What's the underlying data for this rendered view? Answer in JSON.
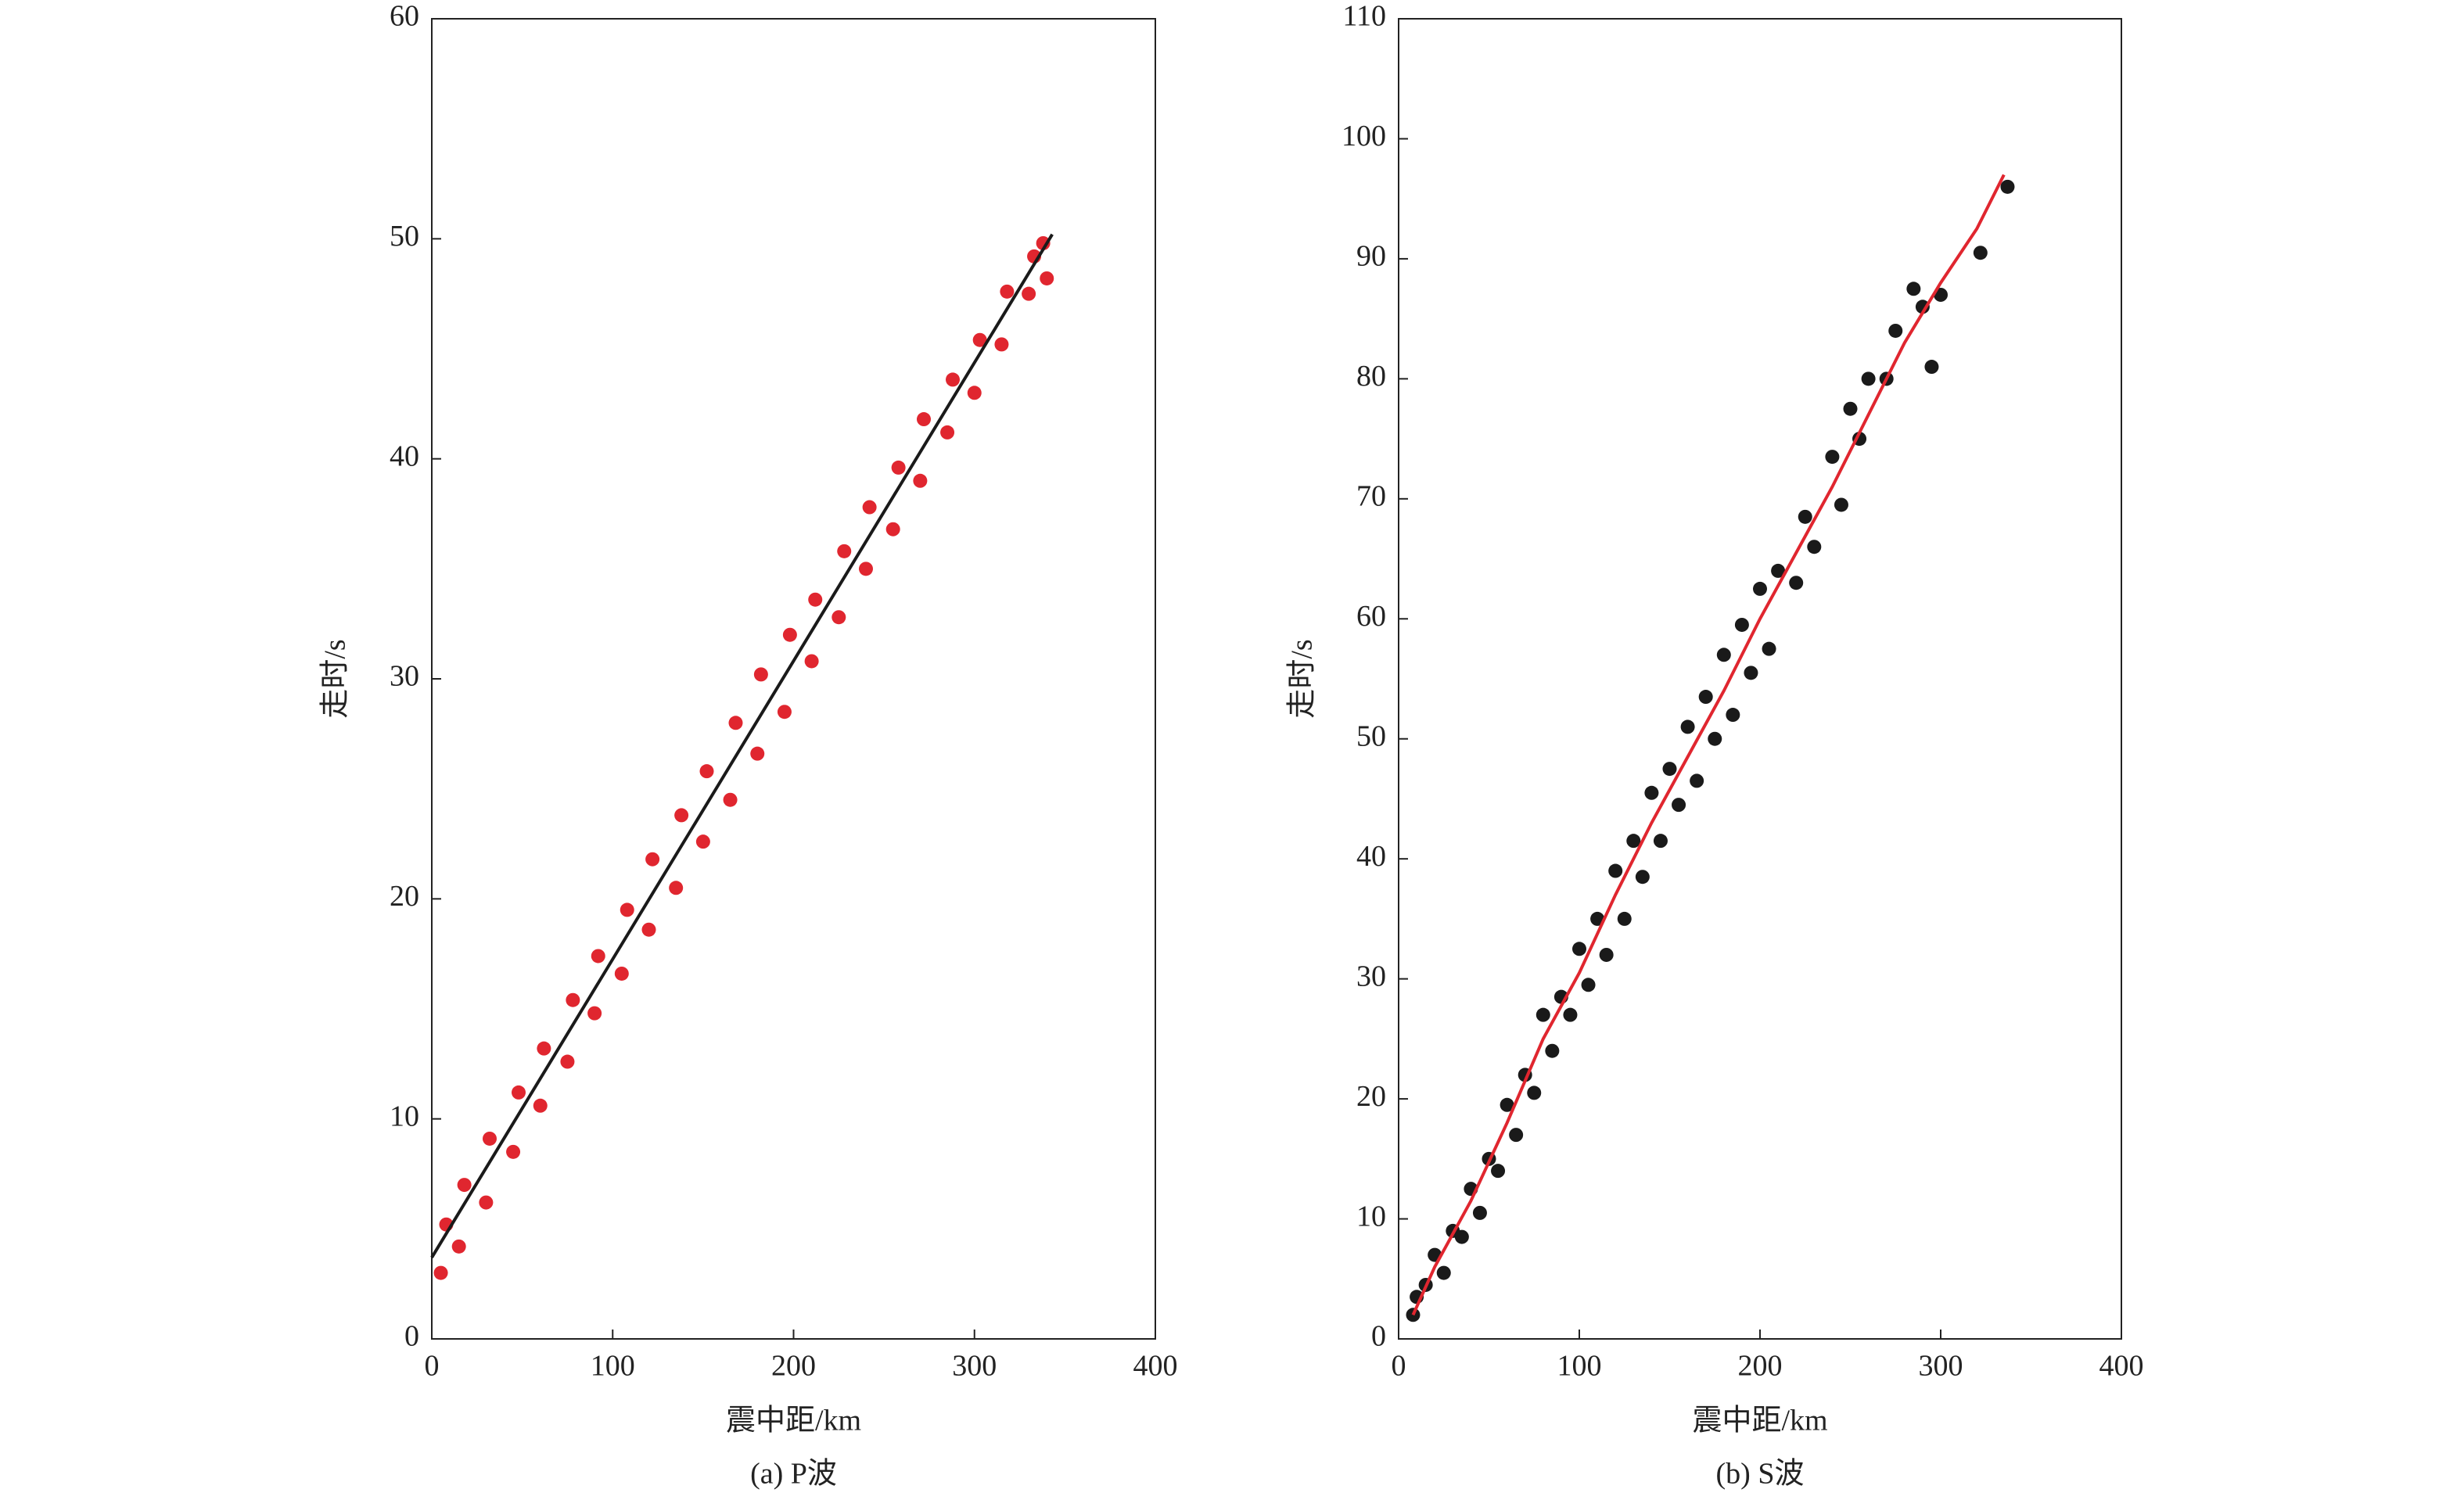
{
  "chart_data": [
    {
      "type": "scatter",
      "caption": "(a) P波",
      "xlabel": "震中距/km",
      "ylabel": "走时/s",
      "xlim": [
        0,
        400
      ],
      "ylim": [
        0,
        60
      ],
      "xticks": [
        0,
        100,
        200,
        300,
        400
      ],
      "yticks": [
        0,
        10,
        20,
        30,
        40,
        50,
        60
      ],
      "color": "#e0262f",
      "x": [
        5,
        8,
        15,
        18,
        30,
        32,
        45,
        48,
        60,
        62,
        75,
        78,
        90,
        92,
        105,
        108,
        120,
        122,
        135,
        138,
        150,
        152,
        165,
        168,
        180,
        182,
        195,
        198,
        210,
        212,
        225,
        228,
        240,
        242,
        255,
        258,
        270,
        272,
        285,
        288,
        300,
        303,
        315,
        318,
        330,
        333,
        340,
        338
      ],
      "y": [
        3.0,
        5.2,
        4.2,
        7.0,
        6.2,
        9.1,
        8.5,
        11.2,
        10.6,
        13.2,
        12.6,
        15.4,
        14.8,
        17.4,
        16.6,
        19.5,
        18.6,
        21.8,
        20.5,
        23.8,
        22.6,
        25.8,
        24.5,
        28.0,
        26.6,
        30.2,
        28.5,
        32.0,
        30.8,
        33.6,
        32.8,
        35.8,
        35.0,
        37.8,
        36.8,
        39.6,
        39.0,
        41.8,
        41.2,
        43.6,
        43.0,
        45.4,
        45.2,
        47.6,
        47.5,
        49.2,
        48.2,
        49.8
      ],
      "fit": {
        "color": "#1a1a1a",
        "x": [
          0,
          343
        ],
        "y": [
          3.7,
          50.2
        ]
      }
    },
    {
      "type": "scatter",
      "caption": "(b) S波",
      "xlabel": "震中距/km",
      "ylabel": "走时/s",
      "xlim": [
        0,
        400
      ],
      "ylim": [
        0,
        110
      ],
      "xticks": [
        0,
        100,
        200,
        300,
        400
      ],
      "yticks": [
        0,
        10,
        20,
        30,
        40,
        50,
        60,
        70,
        80,
        90,
        100,
        110
      ],
      "color": "#1a1a1a",
      "x": [
        8,
        10,
        15,
        20,
        25,
        30,
        35,
        40,
        45,
        50,
        55,
        60,
        65,
        70,
        75,
        80,
        85,
        90,
        95,
        100,
        105,
        110,
        115,
        120,
        125,
        130,
        135,
        140,
        145,
        150,
        155,
        160,
        165,
        170,
        175,
        180,
        185,
        190,
        195,
        200,
        205,
        210,
        220,
        225,
        230,
        240,
        245,
        250,
        255,
        260,
        270,
        275,
        285,
        290,
        295,
        300,
        322,
        337
      ],
      "y": [
        2.0,
        3.5,
        4.5,
        7.0,
        5.5,
        9.0,
        8.5,
        12.5,
        10.5,
        15.0,
        14.0,
        19.5,
        17.0,
        22.0,
        20.5,
        27.0,
        24.0,
        28.5,
        27.0,
        32.5,
        29.5,
        35.0,
        32.0,
        39.0,
        35.0,
        41.5,
        38.5,
        45.5,
        41.5,
        47.5,
        44.5,
        51.0,
        46.5,
        53.5,
        50.0,
        57.0,
        52.0,
        59.5,
        55.5,
        62.5,
        57.5,
        64.0,
        63.0,
        68.5,
        66.0,
        73.5,
        69.5,
        77.5,
        75.0,
        80.0,
        80.0,
        84.0,
        87.5,
        86.0,
        81.0,
        87.0,
        90.5,
        96.0
      ],
      "fit": {
        "color": "#e0262f",
        "x": [
          8,
          20,
          40,
          60,
          80,
          100,
          120,
          140,
          160,
          180,
          200,
          220,
          240,
          260,
          280,
          300,
          320,
          335
        ],
        "y": [
          2,
          6,
          11.5,
          18,
          25,
          30.5,
          37,
          43,
          48.5,
          54,
          60,
          65.5,
          71,
          77,
          83,
          88,
          92.5,
          97
        ]
      }
    }
  ]
}
